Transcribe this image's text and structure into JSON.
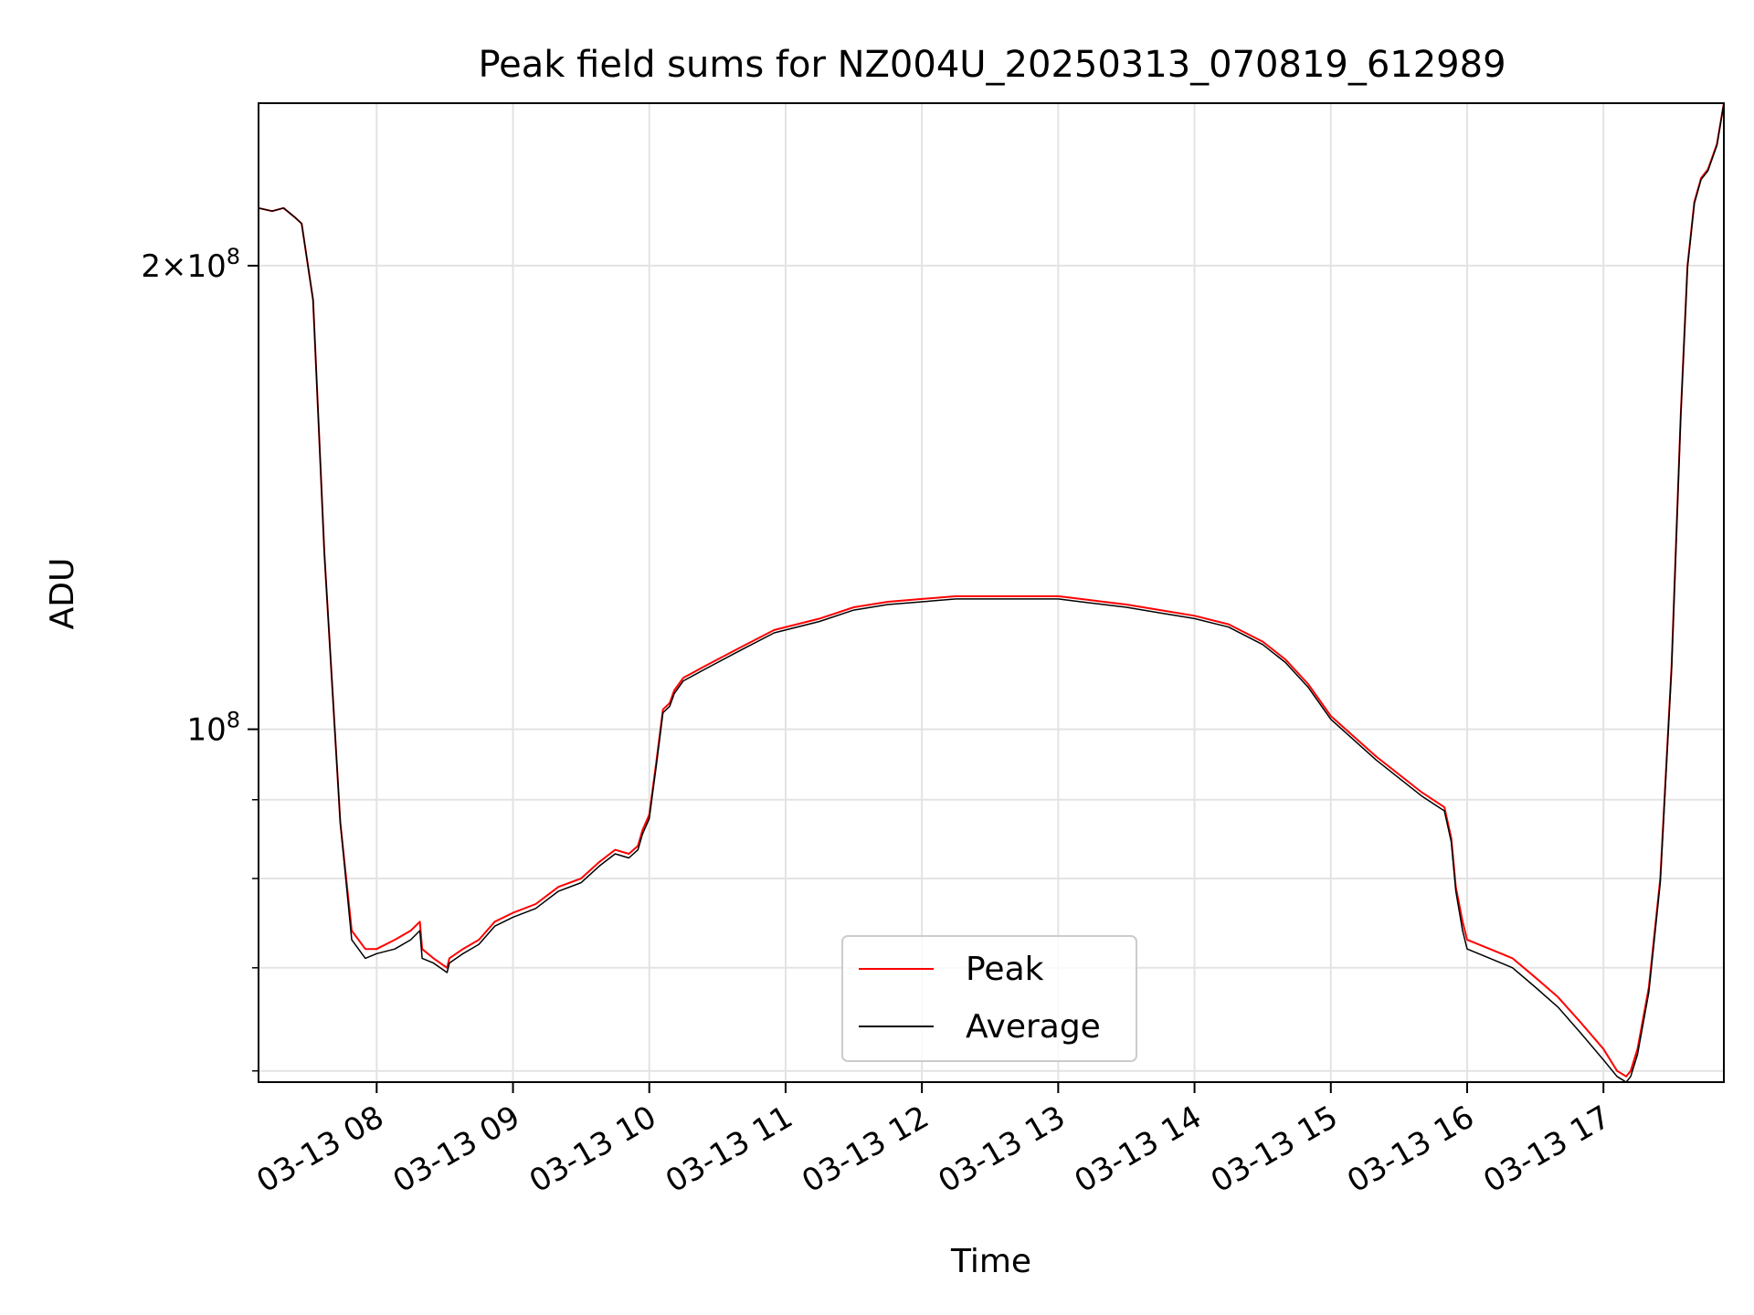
{
  "chart_data": {
    "type": "line",
    "title": "Peak field sums for NZ004U_20250313_070819_612989",
    "xlabel": "Time",
    "ylabel": "ADU",
    "yscale": "log",
    "grid": true,
    "legend_position": "lower center",
    "xlim": [
      "03-13 07:08",
      "03-13 17:53"
    ],
    "ylim": [
      59000000,
      255000000
    ],
    "xtick_labels": [
      "03-13 08",
      "03-13 09",
      "03-13 10",
      "03-13 11",
      "03-13 12",
      "03-13 13",
      "03-13 14",
      "03-13 15",
      "03-13 16",
      "03-13 17"
    ],
    "ytick_labels": [
      {
        "value": 200000000,
        "base": "2×10",
        "exp": "8"
      },
      {
        "value": 100000000,
        "base": "10",
        "exp": "8"
      }
    ],
    "colors": {
      "peak": "#ff0000",
      "average": "#000000",
      "grid": "#e3e3e3"
    },
    "x": [
      "07:08",
      "07:14",
      "07:19",
      "07:24",
      "07:27",
      "07:32",
      "07:37",
      "07:44",
      "07:49",
      "07:55",
      "08:00",
      "08:08",
      "08:15",
      "08:19",
      "08:20",
      "08:25",
      "08:31",
      "08:32",
      "08:38",
      "08:45",
      "08:52",
      "09:00",
      "09:10",
      "09:20",
      "09:30",
      "09:38",
      "09:45",
      "09:51",
      "09:55",
      "09:57",
      "10:00",
      "10:03",
      "10:06",
      "10:09",
      "10:11",
      "10:12",
      "10:15",
      "10:25",
      "10:40",
      "10:55",
      "11:15",
      "11:30",
      "11:45",
      "12:00",
      "12:15",
      "12:30",
      "12:45",
      "13:00",
      "13:10",
      "13:20",
      "13:30",
      "13:45",
      "14:00",
      "14:15",
      "14:30",
      "14:40",
      "14:50",
      "15:00",
      "15:20",
      "15:40",
      "15:50",
      "15:53",
      "15:55",
      "15:58",
      "16:00",
      "16:10",
      "16:20",
      "16:30",
      "16:40",
      "16:50",
      "17:00",
      "17:06",
      "17:10",
      "17:12",
      "17:15",
      "17:20",
      "17:25",
      "17:30",
      "17:34",
      "17:37",
      "17:40",
      "17:43",
      "17:46",
      "17:50",
      "17:53"
    ],
    "series": [
      {
        "name": "Peak",
        "values": [
          218,
          217,
          218,
          215,
          213,
          190,
          130,
          87,
          74,
          72,
          72,
          73,
          74,
          75,
          72,
          71,
          70,
          71,
          72,
          73,
          75,
          76,
          77,
          79,
          80,
          82,
          83.5,
          83,
          84,
          86,
          88,
          95,
          103,
          104,
          106,
          106.5,
          108,
          110,
          113,
          116,
          118,
          120,
          121,
          121.5,
          122,
          122,
          122,
          122,
          121.5,
          121,
          120.5,
          119.5,
          118.5,
          117,
          114,
          111,
          107,
          102,
          96,
          91,
          89,
          85,
          79,
          75,
          73,
          72,
          71,
          69,
          67,
          64.5,
          62,
          60,
          59.5,
          60,
          62,
          68,
          80,
          110,
          160,
          200,
          220,
          228,
          231,
          240,
          255
        ]
      },
      {
        "name": "Average",
        "values": [
          218,
          217,
          218,
          215,
          213,
          190,
          130,
          87,
          73,
          71,
          71.5,
          72,
          73,
          74,
          71,
          70.5,
          69.5,
          70.5,
          71.5,
          72.5,
          74.5,
          75.5,
          76.5,
          78.5,
          79.5,
          81.5,
          83,
          82.5,
          83.5,
          85.5,
          87.5,
          94.5,
          102.5,
          103.5,
          105.5,
          106,
          107.5,
          109.5,
          112.5,
          115.5,
          117.5,
          119.5,
          120.5,
          121,
          121.5,
          121.5,
          121.5,
          121.5,
          121,
          120.5,
          120,
          119,
          118,
          116.5,
          113.5,
          110.5,
          106.5,
          101.5,
          95.5,
          90.5,
          88.5,
          84.5,
          78.5,
          74,
          72,
          71,
          70,
          68,
          66,
          63.5,
          61,
          59.5,
          59,
          59.5,
          61.5,
          67.5,
          79.5,
          109.5,
          159.5,
          199.5,
          219.5,
          227.5,
          230.5,
          239.5,
          255
        ]
      }
    ],
    "y_unit_multiplier": 1000000
  }
}
